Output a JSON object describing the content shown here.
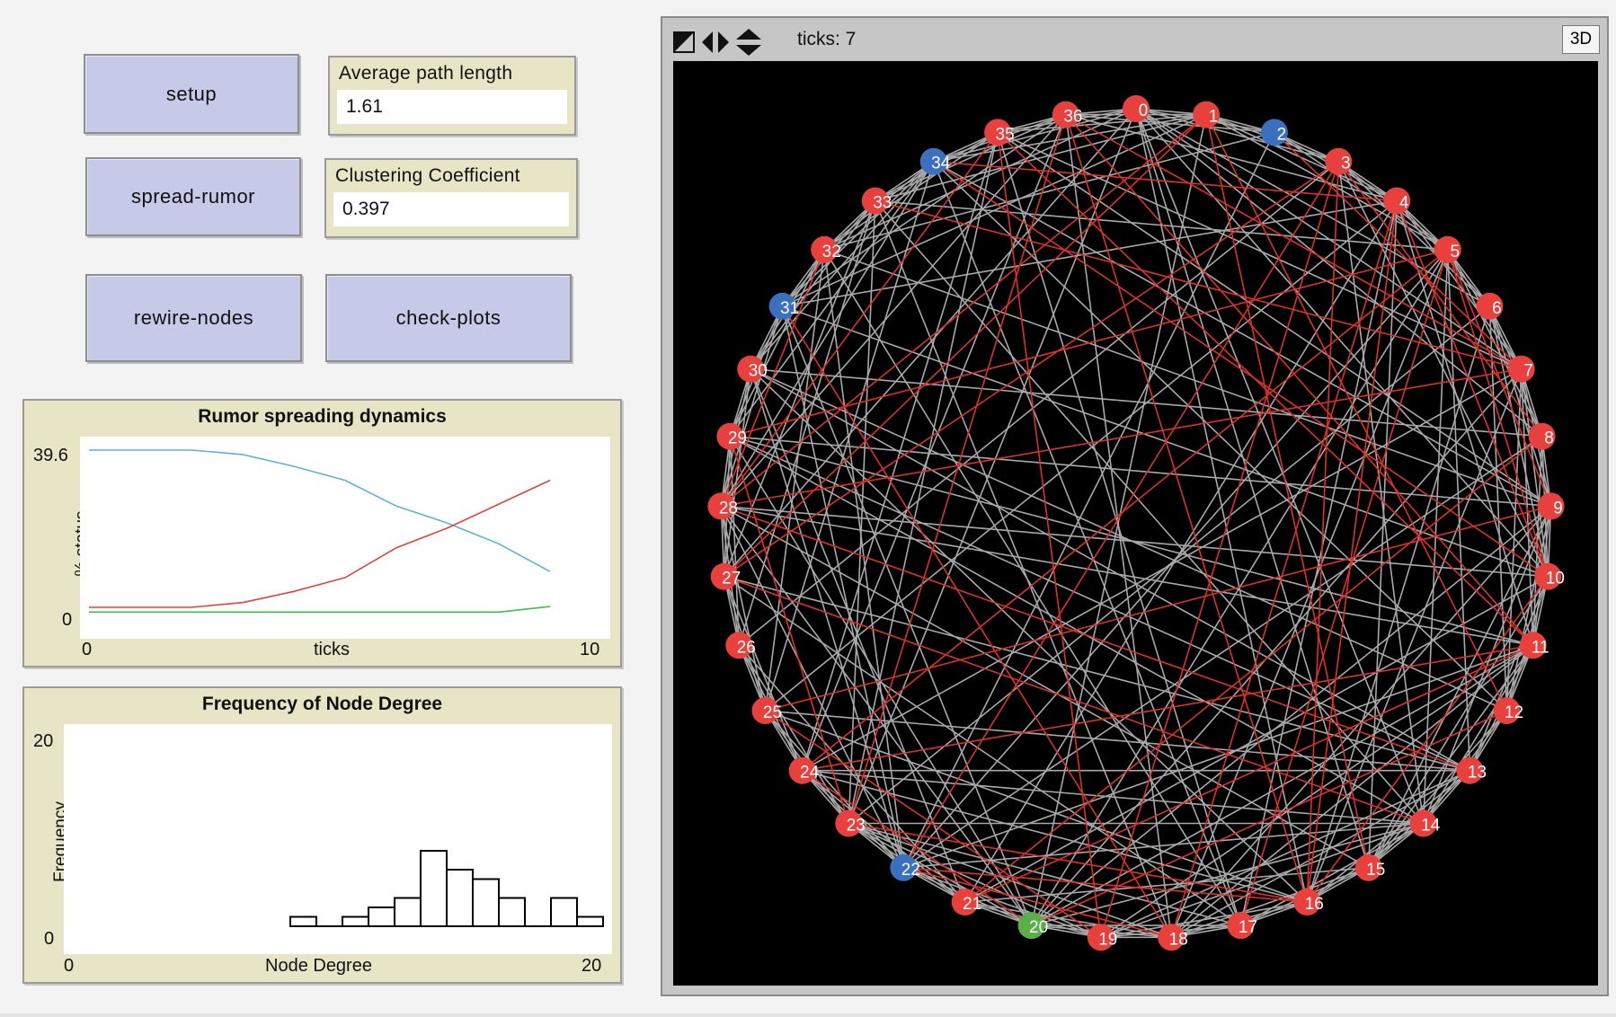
{
  "buttons": {
    "setup": "setup",
    "spread_rumor": "spread-rumor",
    "rewire_nodes": "rewire-nodes",
    "check_plots": "check-plots"
  },
  "monitors": {
    "avg_path": {
      "label": "Average path length",
      "value": "1.61"
    },
    "clustering": {
      "label": "Clustering Coefficient",
      "value": "0.397"
    }
  },
  "view": {
    "ticks_label": "ticks: 7",
    "btn_3d": "3D",
    "node_labels": [
      "0",
      "1",
      "2",
      "3",
      "4",
      "5",
      "6",
      "7",
      "8",
      "9",
      "10",
      "11",
      "12",
      "13",
      "14",
      "15",
      "16",
      "17",
      "18",
      "19",
      "20",
      "21",
      "22",
      "23",
      "24",
      "25",
      "26",
      "27",
      "28",
      "29",
      "30",
      "31",
      "32",
      "33",
      "34",
      "35",
      "36"
    ],
    "node_colors": {
      "red": "#e8413d",
      "blue": "#3b6fbf",
      "green": "#59b04a"
    },
    "blue_nodes": [
      2,
      22,
      31,
      34
    ],
    "green_nodes": [
      20
    ],
    "edge_colors": {
      "gray": "#a9a9a9",
      "red": "#d9322d"
    }
  },
  "plots": {
    "rumor": {
      "title": "Rumor spreading dynamics",
      "ylabel": "% status",
      "xlabel": "ticks",
      "xmin_label": "0",
      "xmax_label": "10",
      "ymin_label": "0",
      "ymax_label": "39.6"
    },
    "degree": {
      "title": "Frequency of Node Degree",
      "ylabel": "Frequency",
      "xlabel": "Node Degree",
      "xmin_label": "0",
      "xmax_label": "20",
      "ymin_label": "0",
      "ymax_label": "20"
    }
  },
  "chart_data": [
    {
      "type": "line",
      "title": "Rumor spreading dynamics",
      "xlabel": "ticks",
      "ylabel": "% status",
      "xlim": [
        0,
        10
      ],
      "ylim": [
        0,
        39.6
      ],
      "series": [
        {
          "color": "#5ab4d6",
          "x": [
            0,
            1,
            2,
            3,
            4,
            5,
            6,
            7,
            8,
            9
          ],
          "y": [
            39.6,
            39.6,
            39.6,
            38.5,
            35.5,
            32.0,
            25.5,
            21.2,
            16.0,
            9.0
          ]
        },
        {
          "color": "#e8413d",
          "x": [
            0,
            1,
            2,
            3,
            4,
            5,
            6,
            7,
            8,
            9
          ],
          "y": [
            0,
            0,
            0,
            1.2,
            4.0,
            7.5,
            15.0,
            20.0,
            26.0,
            32.0
          ]
        },
        {
          "color": "#3cc24a",
          "x": [
            0,
            1,
            2,
            3,
            4,
            5,
            6,
            7,
            8,
            9
          ],
          "y": [
            -1.2,
            -1.2,
            -1.2,
            -1.2,
            -1.2,
            -1.2,
            -1.2,
            -1.2,
            -1.2,
            0.2
          ]
        }
      ]
    },
    {
      "type": "bar",
      "title": "Frequency of Node Degree",
      "xlabel": "Node Degree",
      "ylabel": "Frequency",
      "xlim": [
        0,
        20
      ],
      "ylim": [
        0,
        20
      ],
      "bin_width": 1,
      "bins": [
        8,
        9,
        10,
        11,
        12,
        13,
        14,
        15,
        16,
        17,
        18,
        19
      ],
      "values": [
        1,
        0,
        1,
        2,
        3,
        8,
        6,
        5,
        3,
        0,
        3,
        1
      ]
    }
  ]
}
